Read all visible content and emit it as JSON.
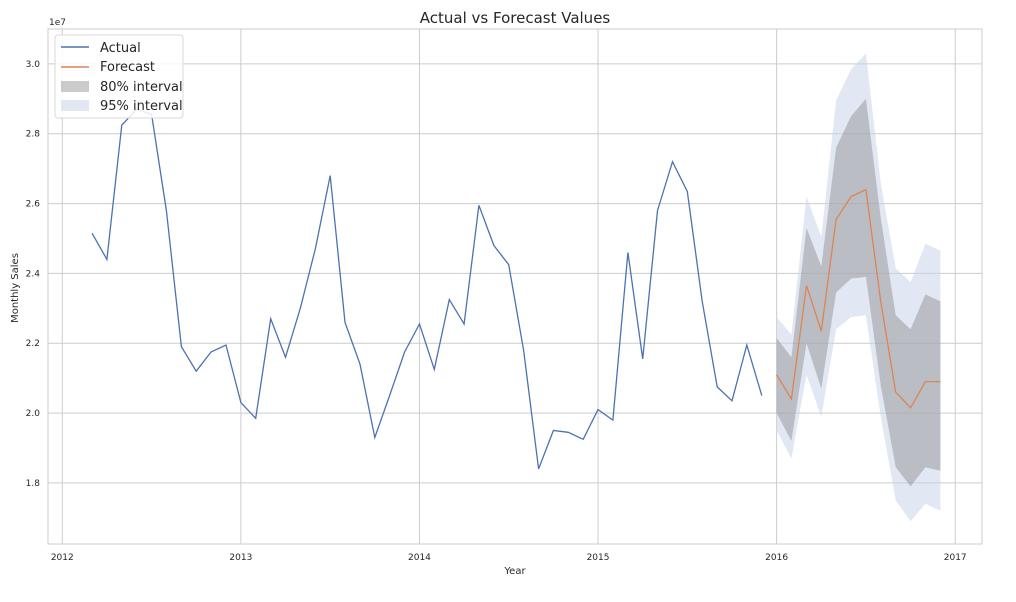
{
  "chart_data": {
    "type": "line",
    "title": "Actual vs Forecast Values",
    "xlabel": "Year",
    "ylabel": "Monthly Sales",
    "y_exponent_label": "1e7",
    "xlim": [
      2011.92,
      2017.15
    ],
    "ylim": [
      16.25,
      31.0
    ],
    "y_scale_multiplier": 10000000,
    "x_ticks": [
      2012,
      2013,
      2014,
      2015,
      2016,
      2017
    ],
    "x_tick_labels": [
      "2012",
      "2013",
      "2014",
      "2015",
      "2016",
      "2017"
    ],
    "y_ticks": [
      18,
      20,
      22,
      24,
      26,
      28,
      30
    ],
    "y_tick_labels": [
      "1.8",
      "2.0",
      "2.2",
      "2.4",
      "2.6",
      "2.8",
      "3.0"
    ],
    "grid": true,
    "legend_position": "top-left",
    "colors": {
      "actual": "#4c72b0",
      "forecast": "#dd8452",
      "interval80": "#8c8c8c",
      "interval95": "#c8d6ea",
      "grid": "#cccccc"
    },
    "legend": {
      "actual": "Actual",
      "forecast": "Forecast",
      "interval80": "80% interval",
      "interval95": "95% interval"
    },
    "actual": {
      "x": [
        2012.167,
        2012.25,
        2012.333,
        2012.417,
        2012.5,
        2012.583,
        2012.667,
        2012.75,
        2012.833,
        2012.917,
        2013.0,
        2013.083,
        2013.167,
        2013.25,
        2013.333,
        2013.417,
        2013.5,
        2013.583,
        2013.667,
        2013.75,
        2013.833,
        2013.917,
        2014.0,
        2014.083,
        2014.167,
        2014.25,
        2014.333,
        2014.417,
        2014.5,
        2014.583,
        2014.667,
        2014.75,
        2014.833,
        2014.917,
        2015.0,
        2015.083,
        2015.167,
        2015.25,
        2015.333,
        2015.417,
        2015.5,
        2015.583,
        2015.667,
        2015.75,
        2015.833,
        2015.917
      ],
      "y": [
        25.15,
        24.4,
        28.25,
        28.7,
        28.55,
        25.8,
        21.9,
        21.2,
        21.75,
        21.95,
        20.3,
        19.85,
        22.7,
        21.6,
        23.0,
        24.7,
        26.8,
        22.6,
        21.4,
        19.3,
        20.5,
        21.75,
        22.55,
        21.25,
        23.25,
        22.55,
        25.95,
        24.8,
        24.25,
        21.8,
        18.4,
        19.5,
        19.45,
        19.25,
        20.1,
        19.8,
        24.6,
        21.55,
        25.8,
        27.2,
        26.35,
        23.2,
        20.75,
        20.35,
        21.95,
        20.5
      ]
    },
    "forecast": {
      "x": [
        2016.0,
        2016.083,
        2016.167,
        2016.25,
        2016.333,
        2016.417,
        2016.5,
        2016.583,
        2016.667,
        2016.75,
        2016.833,
        2016.917
      ],
      "y": [
        21.1,
        20.4,
        23.65,
        22.35,
        25.55,
        26.2,
        26.4,
        23.2,
        20.6,
        20.15,
        20.9,
        20.9
      ],
      "lower80": [
        20.0,
        19.2,
        22.0,
        20.7,
        23.45,
        23.85,
        23.9,
        20.8,
        18.45,
        17.9,
        18.45,
        18.35
      ],
      "upper80": [
        22.15,
        21.6,
        25.3,
        24.2,
        27.6,
        28.5,
        29.0,
        25.6,
        22.8,
        22.4,
        23.4,
        23.2
      ],
      "lower95": [
        19.5,
        18.7,
        21.1,
        19.9,
        22.4,
        22.75,
        22.8,
        19.9,
        17.5,
        16.9,
        17.4,
        17.2
      ],
      "upper95": [
        22.75,
        22.25,
        26.2,
        25.05,
        28.95,
        29.85,
        30.3,
        26.6,
        24.15,
        23.75,
        24.85,
        24.65
      ]
    }
  }
}
